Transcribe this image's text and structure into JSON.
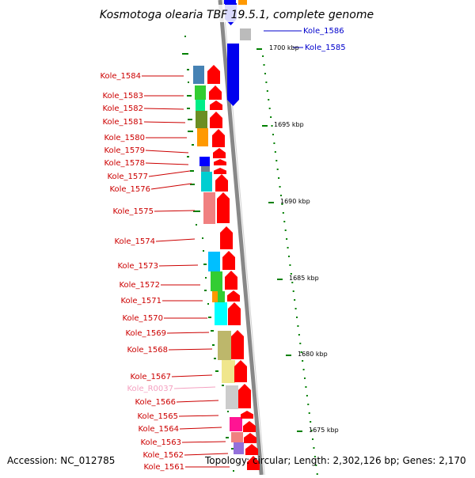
{
  "title": "Kosmotoga olearia TBF 19.5.1, complete genome",
  "footer": {
    "accession": "Accession: NC_012785",
    "topology": "Topology: circular; Length: 2,302,126 bp; Genes: 2,170"
  },
  "colors": {
    "gene_label": "#cc0000",
    "selected_label": "#0000cc",
    "rna_label": "#f4a0c0",
    "strand_arrow": "#ff0000",
    "scale_tick": "#008000",
    "backbone": "#888888"
  },
  "scale_ticks": [
    {
      "label": "1700 kbp"
    },
    {
      "label": "1695 kbp"
    },
    {
      "label": "1690 kbp"
    },
    {
      "label": "1685 kbp"
    },
    {
      "label": "1680 kbp"
    },
    {
      "label": "1675 kbp"
    }
  ],
  "right_labels": [
    {
      "text": "Kole_1586",
      "color": "#0000cc"
    },
    {
      "text": "Kole_1585",
      "color": "#0000cc"
    }
  ],
  "left_labels": [
    {
      "text": "Kole_1584",
      "color": "#cc0000"
    },
    {
      "text": "Kole_1583",
      "color": "#cc0000"
    },
    {
      "text": "Kole_1582",
      "color": "#cc0000"
    },
    {
      "text": "Kole_1581",
      "color": "#cc0000"
    },
    {
      "text": "Kole_1580",
      "color": "#cc0000"
    },
    {
      "text": "Kole_1579",
      "color": "#cc0000"
    },
    {
      "text": "Kole_1578",
      "color": "#cc0000"
    },
    {
      "text": "Kole_1577",
      "color": "#cc0000"
    },
    {
      "text": "Kole_1576",
      "color": "#cc0000"
    },
    {
      "text": "Kole_1575",
      "color": "#cc0000"
    },
    {
      "text": "Kole_1574",
      "color": "#cc0000"
    },
    {
      "text": "Kole_1573",
      "color": "#cc0000"
    },
    {
      "text": "Kole_1572",
      "color": "#cc0000"
    },
    {
      "text": "Kole_1571",
      "color": "#cc0000"
    },
    {
      "text": "Kole_1570",
      "color": "#cc0000"
    },
    {
      "text": "Kole_1569",
      "color": "#cc0000"
    },
    {
      "text": "Kole_1568",
      "color": "#cc0000"
    },
    {
      "text": "Kole_1567",
      "color": "#cc0000"
    },
    {
      "text": "Kole_R0037",
      "color": "#f4a0c0"
    },
    {
      "text": "Kole_1566",
      "color": "#cc0000"
    },
    {
      "text": "Kole_1565",
      "color": "#cc0000"
    },
    {
      "text": "Kole_1564",
      "color": "#cc0000"
    },
    {
      "text": "Kole_1563",
      "color": "#cc0000"
    },
    {
      "text": "Kole_1562",
      "color": "#cc0000"
    },
    {
      "text": "Kole_1561",
      "color": "#cc0000"
    }
  ],
  "cog_blocks": [
    {
      "color": "#ff9900"
    },
    {
      "color": "#0000ff"
    },
    {
      "color": "#bbbbbb"
    },
    {
      "color": "#4682b4"
    },
    {
      "color": "#32cd32"
    },
    {
      "color": "#00ee88"
    },
    {
      "color": "#6b8e23"
    },
    {
      "color": "#ff9900"
    },
    {
      "color": "#0000ff"
    },
    {
      "color": "#708090"
    },
    {
      "color": "#00ced1"
    },
    {
      "color": "#f08080"
    },
    {
      "color": "#00bfff"
    },
    {
      "color": "#32cd32"
    },
    {
      "color": "#ff9900"
    },
    {
      "color": "#32cd32"
    },
    {
      "color": "#00ffff"
    },
    {
      "color": "#bdb76b"
    },
    {
      "color": "#f0e68c"
    },
    {
      "color": "#cccccc"
    },
    {
      "color": "#ff1493"
    },
    {
      "color": "#f08080"
    },
    {
      "color": "#9370db"
    }
  ]
}
